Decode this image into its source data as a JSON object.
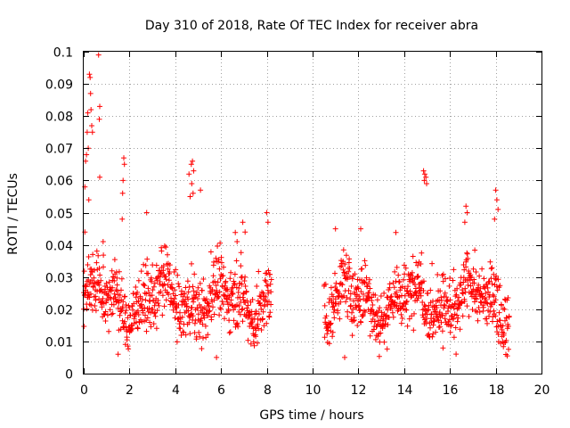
{
  "chart_data": {
    "type": "scatter",
    "title": "Day 310 of 2018, Rate Of TEC Index for receiver abra",
    "xlabel": "GPS time / hours",
    "ylabel": "ROTI / TECUs",
    "xlim": [
      0,
      20
    ],
    "ylim": [
      0,
      0.1
    ],
    "xticks": [
      0,
      2,
      4,
      6,
      8,
      10,
      12,
      14,
      16,
      18,
      20
    ],
    "yticks": [
      0,
      0.01,
      0.02,
      0.03,
      0.04,
      0.05,
      0.06,
      0.07,
      0.08,
      0.09,
      0.1
    ],
    "xtick_labels": [
      "0",
      "2",
      "4",
      "6",
      "8",
      "10",
      "12",
      "14",
      "16",
      "18",
      "20"
    ],
    "ytick_labels": [
      "0",
      "0.01",
      "0.02",
      "0.03",
      "0.04",
      "0.05",
      "0.06",
      "0.07",
      "0.08",
      "0.09",
      "0.1"
    ],
    "grid": true,
    "marker": "+",
    "color": "#ff0000",
    "series": [
      {
        "name": "ROTI",
        "segments": [
          {
            "x_start": 0.0,
            "x_end": 8.2,
            "typical_range": [
              0.01,
              0.035
            ]
          },
          {
            "x_start": 10.5,
            "x_end": 18.6,
            "typical_range": [
              0.01,
              0.035
            ]
          }
        ],
        "outliers": [
          [
            0.05,
            0.058
          ],
          [
            0.08,
            0.066
          ],
          [
            0.12,
            0.068
          ],
          [
            0.15,
            0.075
          ],
          [
            0.18,
            0.081
          ],
          [
            0.2,
            0.07
          ],
          [
            0.25,
            0.093
          ],
          [
            0.28,
            0.092
          ],
          [
            0.3,
            0.087
          ],
          [
            0.32,
            0.082
          ],
          [
            0.35,
            0.077
          ],
          [
            0.38,
            0.075
          ],
          [
            0.22,
            0.054
          ],
          [
            0.65,
            0.099
          ],
          [
            0.68,
            0.079
          ],
          [
            0.7,
            0.083
          ],
          [
            0.7,
            0.061
          ],
          [
            1.75,
            0.067
          ],
          [
            1.78,
            0.065
          ],
          [
            1.72,
            0.06
          ],
          [
            1.7,
            0.056
          ],
          [
            1.68,
            0.048
          ],
          [
            2.75,
            0.05
          ],
          [
            4.6,
            0.062
          ],
          [
            4.7,
            0.065
          ],
          [
            4.75,
            0.066
          ],
          [
            4.8,
            0.063
          ],
          [
            4.72,
            0.059
          ],
          [
            4.78,
            0.056
          ],
          [
            4.65,
            0.055
          ],
          [
            5.1,
            0.057
          ],
          [
            6.95,
            0.047
          ],
          [
            7.05,
            0.044
          ],
          [
            8.0,
            0.05
          ],
          [
            8.05,
            0.047
          ],
          [
            14.85,
            0.063
          ],
          [
            14.9,
            0.062
          ],
          [
            14.95,
            0.061
          ],
          [
            14.88,
            0.06
          ],
          [
            14.98,
            0.059
          ],
          [
            16.7,
            0.052
          ],
          [
            16.75,
            0.05
          ],
          [
            16.65,
            0.047
          ],
          [
            18.0,
            0.057
          ],
          [
            18.05,
            0.054
          ],
          [
            18.1,
            0.051
          ],
          [
            17.95,
            0.048
          ],
          [
            0.05,
            0.044
          ],
          [
            11.0,
            0.045
          ],
          [
            12.1,
            0.045
          ],
          [
            0.85,
            0.041
          ],
          [
            6.7,
            0.041
          ],
          [
            0.0,
            0.02
          ],
          [
            1.5,
            0.006
          ],
          [
            5.8,
            0.005
          ],
          [
            11.4,
            0.005
          ]
        ]
      }
    ]
  }
}
